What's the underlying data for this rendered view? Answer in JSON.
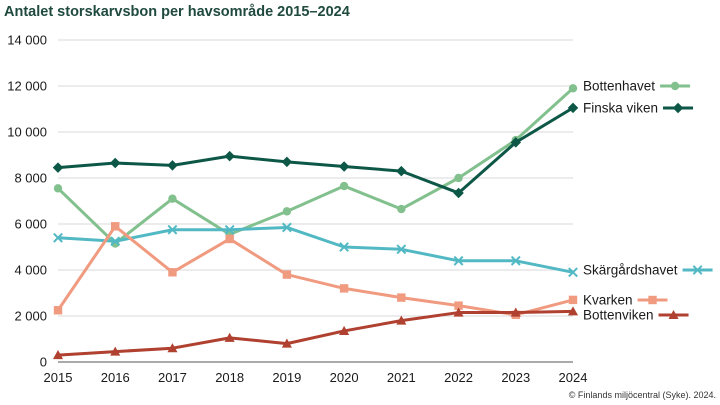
{
  "chart_data": {
    "type": "line",
    "title": "Antalet storskarvsbon per havsområde 2015–2024",
    "x": [
      "2015",
      "2016",
      "2017",
      "2018",
      "2019",
      "2020",
      "2021",
      "2022",
      "2023",
      "2024"
    ],
    "ylim": [
      0,
      14000
    ],
    "yticks": [
      0,
      2000,
      4000,
      6000,
      8000,
      10000,
      12000,
      14000
    ],
    "ytick_labels": [
      "0",
      "2 000",
      "4 000",
      "6 000",
      "8 000",
      "10 000",
      "12 000",
      "14 000"
    ],
    "grid": true,
    "legend_placement": "right end of lines",
    "series": [
      {
        "name": "Bottenhavet",
        "color": "#82c08e",
        "marker": "circle",
        "values": [
          7550,
          5150,
          7100,
          5550,
          6550,
          7650,
          6650,
          8000,
          9650,
          11900
        ]
      },
      {
        "name": "Finska viken",
        "color": "#0d5747",
        "marker": "diamond",
        "values": [
          8450,
          8650,
          8550,
          8950,
          8700,
          8500,
          8300,
          7350,
          9550,
          11050
        ]
      },
      {
        "name": "Skärgårdshavet",
        "color": "#52b9c4",
        "marker": "x",
        "values": [
          5400,
          5250,
          5750,
          5750,
          5850,
          5000,
          4900,
          4400,
          4400,
          3900
        ]
      },
      {
        "name": "Kvarken",
        "color": "#f09a80",
        "marker": "square",
        "values": [
          2250,
          5900,
          3900,
          5350,
          3800,
          3200,
          2800,
          2450,
          2050,
          2700
        ]
      },
      {
        "name": "Bottenviken",
        "color": "#b0402f",
        "marker": "triangle",
        "values": [
          300,
          450,
          600,
          1050,
          800,
          1350,
          1800,
          2150,
          2150,
          2200
        ]
      }
    ],
    "source": "© Finlands miljöcentral (Syke). 2024."
  }
}
